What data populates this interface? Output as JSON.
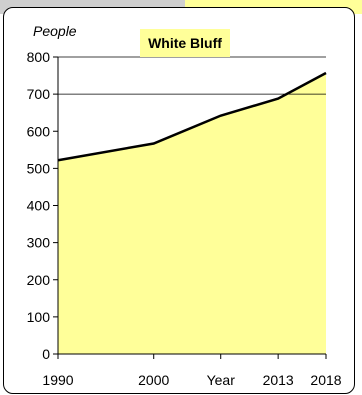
{
  "chart_data": {
    "type": "area",
    "title": "White Bluff",
    "ylabel": "People",
    "x": [
      1990,
      2000,
      2007,
      2013,
      2018
    ],
    "xtick_labels": [
      "1990",
      "2000",
      "Year",
      "2013",
      "2018"
    ],
    "values": [
      522,
      567,
      642,
      688,
      757
    ],
    "ylim": [
      0,
      800
    ],
    "yticks": [
      0,
      100,
      200,
      300,
      400,
      500,
      600,
      700,
      800
    ],
    "grid": "horizontal at 700 and 800",
    "colors": {
      "fill": "#ffff99",
      "line": "#000000",
      "title_bg": "#ffff99"
    }
  }
}
